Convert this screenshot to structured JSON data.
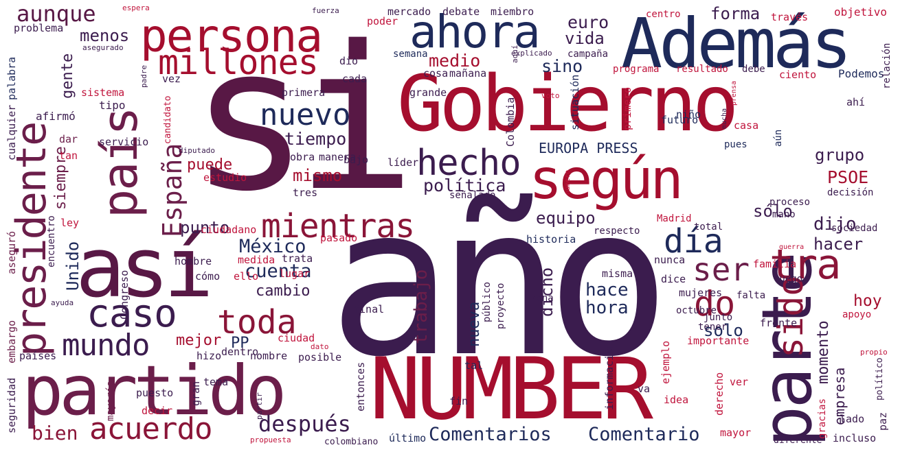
{
  "palette": {
    "c1": "#581845",
    "c2": "#1e2a5a",
    "c3": "#a50e2e",
    "c4": "#8a1538",
    "c5": "#c0143c",
    "c6": "#3b1c4e",
    "c7": "#6b1e4a"
  },
  "words": [
    "si",
    "año",
    "Gobierno",
    "NUMBER",
    "parte",
    "Además",
    "así",
    "según",
    "partido",
    "persona",
    "país",
    "presidente",
    "ahora",
    "caso",
    "millones",
    "toda",
    "mientras",
    "hecho",
    "mundo",
    "España",
    "nuevo",
    "acuerdo",
    "tra",
    "día",
    "do",
    "sido",
    "ser",
    "después",
    "aunque",
    "Comentarios",
    "Comentario",
    "política",
    "cuenta",
    "México",
    "tiempo",
    "dijo",
    "hoy",
    "bien",
    "trabajo",
    "hace",
    "hora",
    "menos",
    "medio",
    "euro",
    "forma",
    "vida",
    "sino",
    "EUROPA PRESS",
    "PSOE",
    "grupo",
    "sólo",
    "hacer",
    "solo",
    "punto",
    "equipo",
    "mismo",
    "puede",
    "siempre",
    "gente",
    "Unido",
    "dicho",
    "nueva",
    "momento",
    "empresa",
    "cambio",
    "mejor",
    "PP",
    "Podemos",
    "Colombia",
    "objetivo",
    "problema",
    "sistema",
    "palabra",
    "afirmó",
    "cualquier",
    "servicio",
    "tipo",
    "dar",
    "tan",
    "ley",
    "aseguró",
    "encuentro",
    "seguridad",
    "embargo",
    "países",
    "Congreso",
    "mayoría",
    "ciudadano",
    "estudio",
    "medida",
    "trata",
    "ello",
    "lugar",
    "hombre",
    "cómo",
    "hizo",
    "dentro",
    "nombre",
    "posible",
    "puesto",
    "decir",
    "gran",
    "tema",
    "ciudad",
    "dato",
    "tal",
    "entonces",
    "colombiano",
    "propuesta",
    "partir",
    "fin",
    "último",
    "información",
    "va",
    "ejemplo",
    "idea",
    "derecho",
    "ver",
    "gracias",
    "lado",
    "mayor",
    "diferente",
    "incluso",
    "paz",
    "político",
    "propio",
    "apoyo",
    "junto",
    "tener",
    "frente",
    "importante",
    "octubre",
    "mujeres",
    "falta",
    "luego",
    "dice",
    "misma",
    "nunca",
    "familia",
    "público",
    "proyecto",
    "zona",
    "final",
    "bajo",
    "líder",
    "tres",
    "señalado",
    "proceso",
    "decisión",
    "mano",
    "total",
    "Madrid",
    "sociedad",
    "respecto",
    "historia",
    "guerra",
    "número",
    "pues",
    "aún",
    "casa",
    "niño",
    "futuro",
    "ahí",
    "primero",
    "situación",
    "mucha",
    "prensa",
    "programa",
    "resultado",
    "debe",
    "ciento",
    "relación",
    "través",
    "centro",
    "semana",
    "campaña",
    "explicado",
    "voto",
    "padre",
    "vez",
    "cosa",
    "mañana",
    "grande",
    "primera",
    "cada",
    "dio",
    "aquí",
    "poder",
    "mercado",
    "debate",
    "miembro",
    "fuerza",
    "espera",
    "asegurado",
    "candidato",
    "diputado",
    "obra",
    "manera",
    "pasado",
    "ayuda"
  ]
}
